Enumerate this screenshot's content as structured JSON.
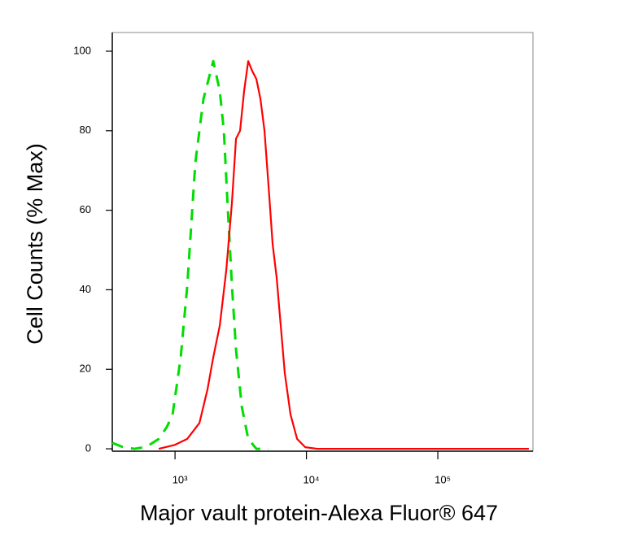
{
  "chart_data": {
    "type": "line",
    "xlabel": "Major vault protein-Alexa Fluor® 647",
    "ylabel": "Cell Counts (% Max)",
    "xscale": "log",
    "xlim": [
      333,
      530000
    ],
    "ylim": [
      -0.6,
      104.7
    ],
    "xticks": [
      {
        "value": 1000,
        "label": "10³"
      },
      {
        "value": 10000,
        "label": "10⁴"
      },
      {
        "value": 100000,
        "label": "10⁵"
      }
    ],
    "yticks": [
      0,
      20,
      40,
      60,
      80,
      100
    ],
    "series": [
      {
        "color": "#00dd00",
        "dash": true,
        "x": [
          333,
          396,
          490,
          607,
          752,
          867,
          958,
          1105,
          1239,
          1428,
          1646,
          1954,
          2191,
          2353,
          2525,
          2712,
          2912,
          3221,
          3606,
          4161,
          5152
        ],
        "values": [
          1.5,
          0.5,
          0,
          0.5,
          2.5,
          5.5,
          8.6,
          23,
          41,
          72,
          88,
          97.5,
          90,
          80,
          60,
          41,
          25,
          10.6,
          2.5,
          0,
          0
        ]
      },
      {
        "color": "#ff0000",
        "dash": false,
        "x": [
          752,
          1000,
          1239,
          1534,
          1768,
          1954,
          2191,
          2456,
          2712,
          2912,
          3126,
          3356,
          3606,
          3870,
          4161,
          4467,
          4796,
          5152,
          5531,
          5938,
          6376,
          6846,
          7570,
          8491,
          9800,
          12130,
          58200,
          493000
        ],
        "values": [
          0,
          1,
          2.5,
          6.5,
          15,
          23,
          31,
          45,
          62,
          78,
          80,
          90,
          97.5,
          95,
          93,
          88,
          80,
          66,
          51.5,
          43,
          31,
          19,
          8.6,
          2.5,
          0.4,
          0,
          0,
          0
        ]
      }
    ]
  }
}
